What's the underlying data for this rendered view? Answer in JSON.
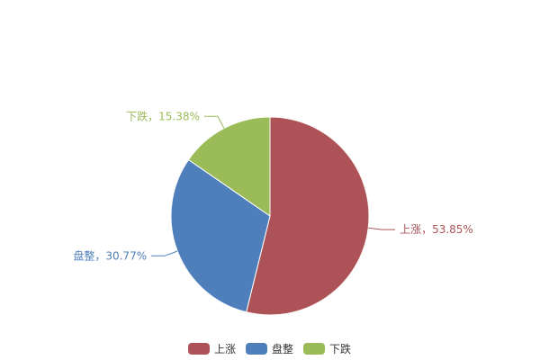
{
  "chart_data": {
    "type": "pie",
    "title": "",
    "slices": [
      {
        "name": "上涨",
        "value": 53.85,
        "label": "上涨，53.85%",
        "color": "#ad5357"
      },
      {
        "name": "盘整",
        "value": 30.77,
        "label": "盘整，30.77%",
        "color": "#4e7fbb"
      },
      {
        "name": "下跌",
        "value": 15.38,
        "label": "下跌，15.38%",
        "color": "#9bbb59"
      }
    ],
    "start_angle": "top",
    "direction": "clockwise",
    "legend": {
      "position": "bottom",
      "items": [
        "上涨",
        "盘整",
        "下跌"
      ]
    }
  }
}
